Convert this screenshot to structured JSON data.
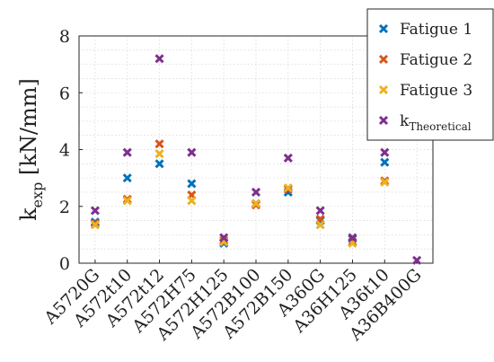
{
  "chart_data": {
    "type": "scatter",
    "categories": [
      "A5720G",
      "A572t10",
      "A572t12",
      "A572H75",
      "A572H125",
      "A572B100",
      "A572B150",
      "A360G",
      "A36H125",
      "A36t10",
      "A36B400G"
    ],
    "series": [
      {
        "name": "Fatigue 1",
        "color": "#0072BD",
        "values": [
          1.45,
          3.0,
          3.5,
          2.8,
          0.7,
          2.1,
          2.5,
          1.5,
          0.85,
          3.55,
          null
        ]
      },
      {
        "name": "Fatigue 2",
        "color": "#D95319",
        "values": [
          1.4,
          2.25,
          4.2,
          2.4,
          0.8,
          2.05,
          2.6,
          1.55,
          0.75,
          2.9,
          null
        ]
      },
      {
        "name": "Fatigue 3",
        "color": "#EDB120",
        "values": [
          1.35,
          2.2,
          3.85,
          2.2,
          0.75,
          2.1,
          2.65,
          1.35,
          0.7,
          2.85,
          null
        ]
      },
      {
        "name_main": "k",
        "name_sub": "Theoretical",
        "color": "#7E2F8E",
        "values": [
          1.85,
          3.9,
          7.2,
          3.9,
          0.9,
          2.5,
          3.7,
          1.85,
          0.9,
          3.9,
          0.1
        ]
      }
    ],
    "ylabel_main": "k",
    "ylabel_sub": "exp",
    "ylabel_unit": " [kN/mm]",
    "ylim": [
      0,
      8
    ],
    "yticks": [
      0,
      2,
      4,
      6,
      8
    ],
    "grid": true,
    "legend_position": "top-right"
  }
}
